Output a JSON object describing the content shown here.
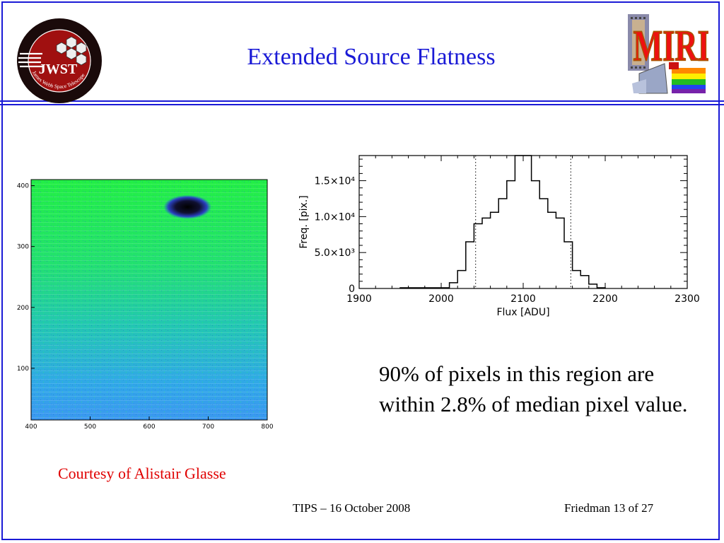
{
  "slide": {
    "title": "Extended Source Flatness",
    "caption": "90% of pixels in this region are within 2.8% of median pixel value.",
    "credit": "Courtesy of Alistair Glasse",
    "footer_left": "TIPS – 16 October 2008",
    "footer_right": "Friedman 13 of 27"
  },
  "logos": {
    "left": {
      "text": "JWST",
      "ring_text": "James Webb Space Telescope",
      "icon": "jwst-logo"
    },
    "right": {
      "text": "MIRI",
      "icon": "miri-logo"
    }
  },
  "colors": {
    "accent": "#1a1ad6",
    "credit": "#e00000"
  },
  "chart_data": [
    {
      "type": "heatmap",
      "description_axes": "detector image",
      "x_ticks": [
        400,
        500,
        600,
        700,
        800
      ],
      "y_ticks": [
        100,
        200,
        300,
        400
      ],
      "xlim": [
        400,
        800
      ],
      "ylim": [
        15,
        410
      ],
      "colormap": "blue-cyan-green",
      "features": [
        {
          "kind": "dark-spot",
          "x": 665,
          "y": 365
        }
      ]
    },
    {
      "type": "histogram",
      "xlabel": "Flux [ADU]",
      "ylabel": "Freq. [pix.]",
      "xlim": [
        1900,
        2300
      ],
      "ylim": [
        0,
        18500
      ],
      "x_ticks": [
        1900,
        2000,
        2100,
        2200,
        2300
      ],
      "y_ticks": [
        {
          "value": 0,
          "label": "0"
        },
        {
          "value": 5000,
          "label": "5.0×10³"
        },
        {
          "value": 10000,
          "label": "1.0×10⁴"
        },
        {
          "value": 15000,
          "label": "1.5×10⁴"
        }
      ],
      "vlines": [
        2042,
        2158
      ],
      "bins": [
        1950,
        2010,
        2020,
        2030,
        2040,
        2050,
        2060,
        2070,
        2080,
        2090,
        2100,
        2110,
        2120,
        2130,
        2140,
        2150,
        2160,
        2170,
        2180,
        2190,
        2200
      ],
      "values": [
        100,
        800,
        2500,
        6500,
        9000,
        9800,
        10600,
        12500,
        15000,
        18500,
        18500,
        15000,
        12500,
        10600,
        9800,
        6500,
        2500,
        1800,
        600,
        100
      ]
    }
  ]
}
